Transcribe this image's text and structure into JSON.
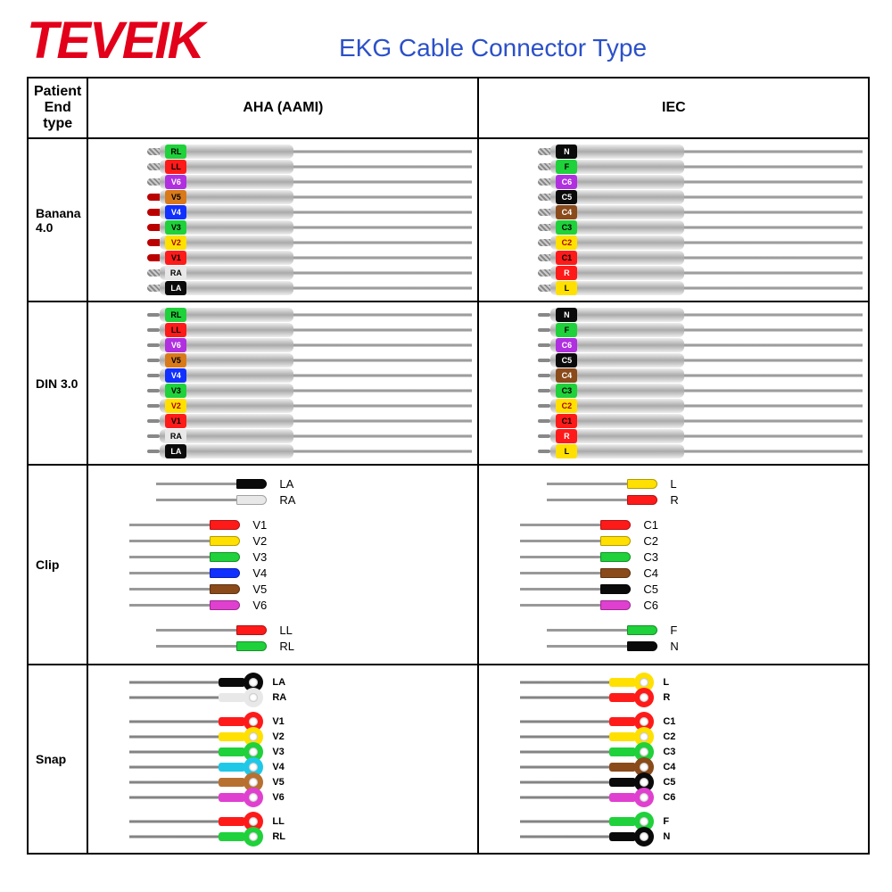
{
  "brand": "TEVEIK",
  "brand_color": "#e2001a",
  "title": "EKG Cable Connector Type",
  "title_color": "#2b50c8",
  "columns": [
    "Patient End type",
    "AHA (AAMI)",
    "IEC"
  ],
  "rows": [
    {
      "name": "Banana 4.0",
      "style": "banana",
      "aha": [
        {
          "label": "RL",
          "band": "#1fd13a",
          "text": "#000",
          "tip": "twist"
        },
        {
          "label": "LL",
          "band": "#ff1a1a",
          "text": "#000",
          "tip": "twist"
        },
        {
          "label": "V6",
          "band": "#b030e0",
          "text": "#fff",
          "tip": "twist"
        },
        {
          "label": "V5",
          "band": "#d97a1a",
          "text": "#000",
          "tip": "red"
        },
        {
          "label": "V4",
          "band": "#1030ff",
          "text": "#fff",
          "tip": "red"
        },
        {
          "label": "V3",
          "band": "#1fd13a",
          "text": "#000",
          "tip": "red"
        },
        {
          "label": "V2",
          "band": "#ffe000",
          "text": "#a00",
          "tip": "red"
        },
        {
          "label": "V1",
          "band": "#ff1a1a",
          "text": "#000",
          "tip": "red"
        },
        {
          "label": "RA",
          "band": "#e8e8e8",
          "text": "#000",
          "tip": "twist"
        },
        {
          "label": "LA",
          "band": "#0a0a0a",
          "text": "#fff",
          "tip": "twist"
        }
      ],
      "iec": [
        {
          "label": "N",
          "band": "#0a0a0a",
          "text": "#fff",
          "tip": "twist"
        },
        {
          "label": "F",
          "band": "#1fd13a",
          "text": "#000",
          "tip": "twist"
        },
        {
          "label": "C6",
          "band": "#b030e0",
          "text": "#fff",
          "tip": "twist"
        },
        {
          "label": "C5",
          "band": "#0a0a0a",
          "text": "#fff",
          "tip": "twist"
        },
        {
          "label": "C4",
          "band": "#8a4a1a",
          "text": "#fff",
          "tip": "twist"
        },
        {
          "label": "C3",
          "band": "#1fd13a",
          "text": "#000",
          "tip": "twist"
        },
        {
          "label": "C2",
          "band": "#ffe000",
          "text": "#a00",
          "tip": "twist"
        },
        {
          "label": "C1",
          "band": "#ff1a1a",
          "text": "#000",
          "tip": "twist"
        },
        {
          "label": "R",
          "band": "#ff1a1a",
          "text": "#fff",
          "tip": "twist"
        },
        {
          "label": "L",
          "band": "#ffe000",
          "text": "#000",
          "tip": "twist"
        }
      ]
    },
    {
      "name": "DIN 3.0",
      "style": "din",
      "aha": [
        {
          "label": "RL",
          "band": "#1fd13a",
          "text": "#000"
        },
        {
          "label": "LL",
          "band": "#ff1a1a",
          "text": "#000"
        },
        {
          "label": "V6",
          "band": "#b030e0",
          "text": "#fff"
        },
        {
          "label": "V5",
          "band": "#d97a1a",
          "text": "#000"
        },
        {
          "label": "V4",
          "band": "#1030ff",
          "text": "#fff"
        },
        {
          "label": "V3",
          "band": "#1fd13a",
          "text": "#000"
        },
        {
          "label": "V2",
          "band": "#ffe000",
          "text": "#a00"
        },
        {
          "label": "V1",
          "band": "#ff1a1a",
          "text": "#000"
        },
        {
          "label": "RA",
          "band": "#e8e8e8",
          "text": "#000"
        },
        {
          "label": "LA",
          "band": "#0a0a0a",
          "text": "#fff"
        }
      ],
      "iec": [
        {
          "label": "N",
          "band": "#0a0a0a",
          "text": "#fff"
        },
        {
          "label": "F",
          "band": "#1fd13a",
          "text": "#000"
        },
        {
          "label": "C6",
          "band": "#b030e0",
          "text": "#fff"
        },
        {
          "label": "C5",
          "band": "#0a0a0a",
          "text": "#fff"
        },
        {
          "label": "C4",
          "band": "#8a4a1a",
          "text": "#fff"
        },
        {
          "label": "C3",
          "band": "#1fd13a",
          "text": "#000"
        },
        {
          "label": "C2",
          "band": "#ffe000",
          "text": "#a00"
        },
        {
          "label": "C1",
          "band": "#ff1a1a",
          "text": "#000"
        },
        {
          "label": "R",
          "band": "#ff1a1a",
          "text": "#fff"
        },
        {
          "label": "L",
          "band": "#ffe000",
          "text": "#000"
        }
      ]
    },
    {
      "name": "Clip",
      "style": "clip",
      "aha": [
        {
          "label": "LA",
          "color": "#0a0a0a",
          "sep": false,
          "ind": 30
        },
        {
          "label": "RA",
          "color": "#e8e8e8",
          "sep": false,
          "ind": 30
        },
        {
          "label": "V1",
          "color": "#ff1a1a",
          "sep": true,
          "ind": 0
        },
        {
          "label": "V2",
          "color": "#ffe000",
          "sep": false,
          "ind": 0
        },
        {
          "label": "V3",
          "color": "#1fd13a",
          "sep": false,
          "ind": 0
        },
        {
          "label": "V4",
          "color": "#1030ff",
          "sep": false,
          "ind": 0
        },
        {
          "label": "V5",
          "color": "#8a4a1a",
          "sep": false,
          "ind": 0
        },
        {
          "label": "V6",
          "color": "#e040d0",
          "sep": false,
          "ind": 0
        },
        {
          "label": "LL",
          "color": "#ff1a1a",
          "sep": true,
          "ind": 30
        },
        {
          "label": "RL",
          "color": "#1fd13a",
          "sep": false,
          "ind": 30
        }
      ],
      "iec": [
        {
          "label": "L",
          "color": "#ffe000",
          "sep": false,
          "ind": 30
        },
        {
          "label": "R",
          "color": "#ff1a1a",
          "sep": false,
          "ind": 30
        },
        {
          "label": "C1",
          "color": "#ff1a1a",
          "sep": true,
          "ind": 0
        },
        {
          "label": "C2",
          "color": "#ffe000",
          "sep": false,
          "ind": 0
        },
        {
          "label": "C3",
          "color": "#1fd13a",
          "sep": false,
          "ind": 0
        },
        {
          "label": "C4",
          "color": "#8a4a1a",
          "sep": false,
          "ind": 0
        },
        {
          "label": "C5",
          "color": "#0a0a0a",
          "sep": false,
          "ind": 0
        },
        {
          "label": "C6",
          "color": "#e040d0",
          "sep": false,
          "ind": 0
        },
        {
          "label": "F",
          "color": "#1fd13a",
          "sep": true,
          "ind": 30
        },
        {
          "label": "N",
          "color": "#0a0a0a",
          "sep": false,
          "ind": 30
        }
      ]
    },
    {
      "name": "Snap",
      "style": "snap",
      "aha": [
        {
          "label": "LA",
          "color": "#0a0a0a",
          "grp": 0
        },
        {
          "label": "RA",
          "color": "#e8e8e8",
          "grp": 0
        },
        {
          "label": "V1",
          "color": "#ff1a1a",
          "grp": 1
        },
        {
          "label": "V2",
          "color": "#ffe000",
          "grp": 1
        },
        {
          "label": "V3",
          "color": "#1fd13a",
          "grp": 1
        },
        {
          "label": "V4",
          "color": "#20c8e8",
          "grp": 1
        },
        {
          "label": "V5",
          "color": "#b87030",
          "grp": 1
        },
        {
          "label": "V6",
          "color": "#e040d0",
          "grp": 1
        },
        {
          "label": "LL",
          "color": "#ff1a1a",
          "grp": 2
        },
        {
          "label": "RL",
          "color": "#1fd13a",
          "grp": 2
        }
      ],
      "iec": [
        {
          "label": "L",
          "color": "#ffe000",
          "grp": 0
        },
        {
          "label": "R",
          "color": "#ff1a1a",
          "grp": 0
        },
        {
          "label": "C1",
          "color": "#ff1a1a",
          "grp": 1
        },
        {
          "label": "C2",
          "color": "#ffe000",
          "grp": 1
        },
        {
          "label": "C3",
          "color": "#1fd13a",
          "grp": 1
        },
        {
          "label": "C4",
          "color": "#8a4a1a",
          "grp": 1
        },
        {
          "label": "C5",
          "color": "#0a0a0a",
          "grp": 1
        },
        {
          "label": "C6",
          "color": "#e040d0",
          "grp": 1
        },
        {
          "label": "F",
          "color": "#1fd13a",
          "grp": 2
        },
        {
          "label": "N",
          "color": "#0a0a0a",
          "grp": 2
        }
      ]
    }
  ]
}
